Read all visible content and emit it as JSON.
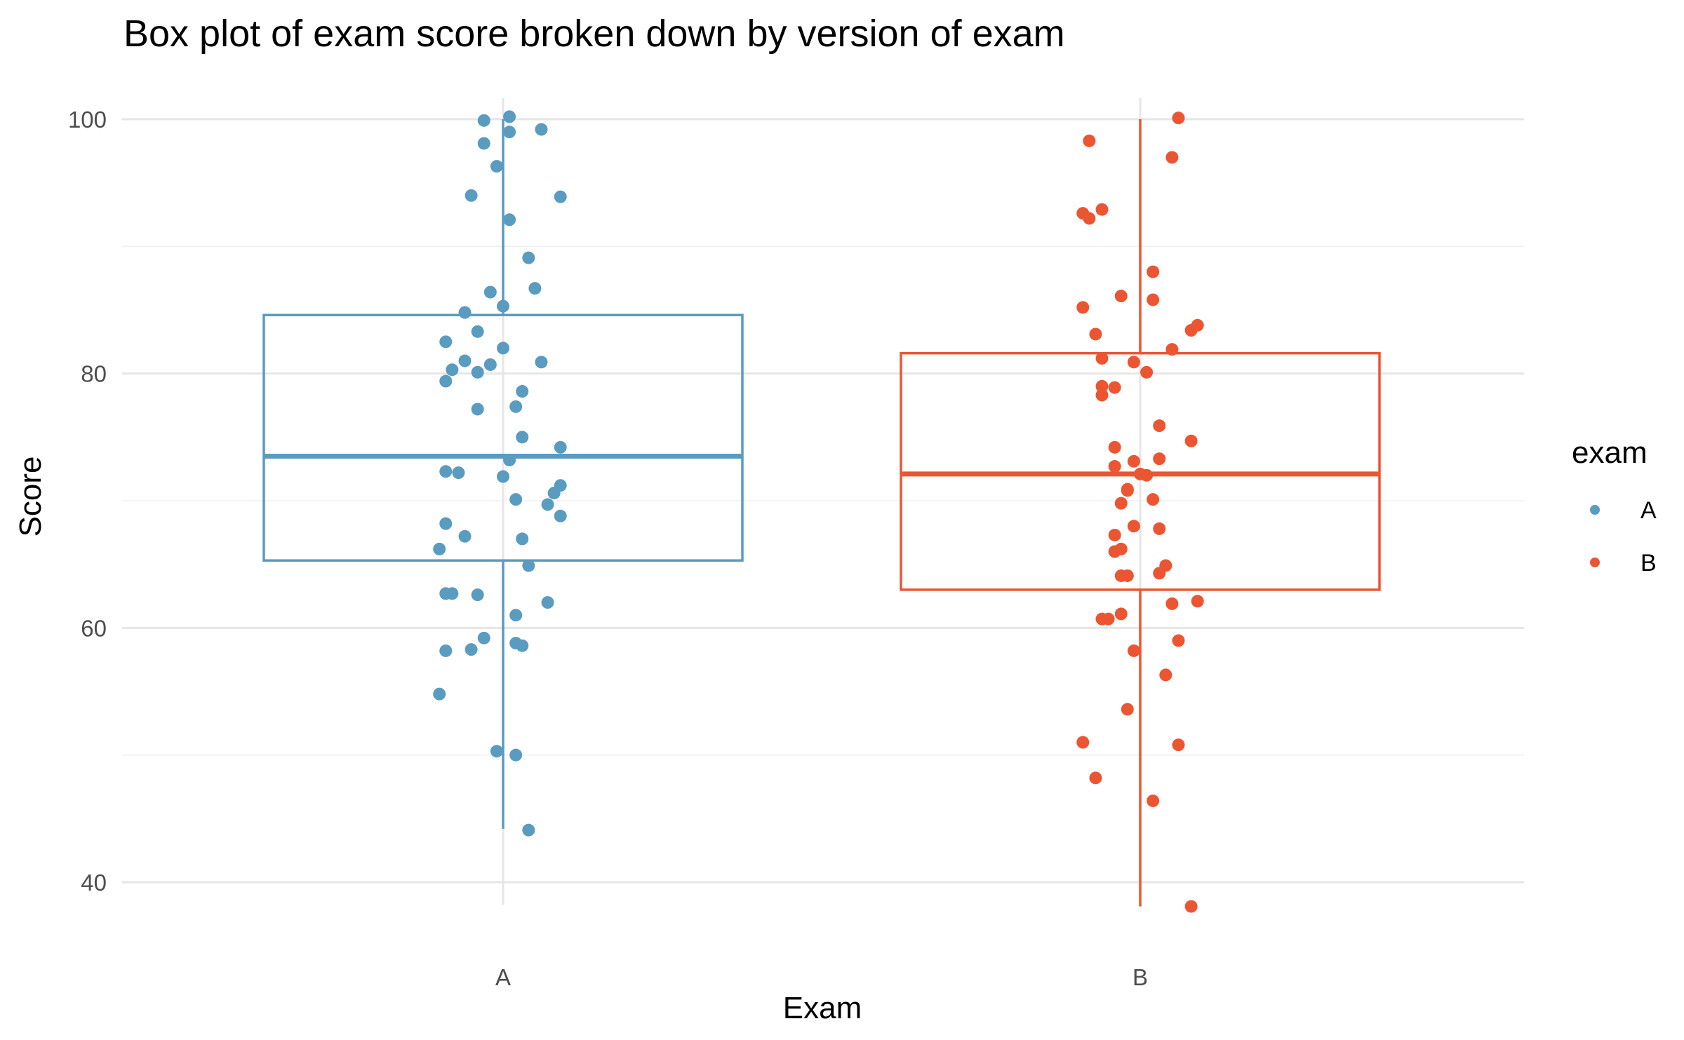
{
  "chart_data": {
    "type": "boxplot",
    "title": "Box plot of exam score broken down by version of exam",
    "xlabel": "Exam",
    "ylabel": "Score",
    "categories": [
      "A",
      "B"
    ],
    "ylim": [
      35,
      102
    ],
    "yticks": [
      40,
      60,
      80,
      100
    ],
    "grid": true,
    "legend": {
      "title": "exam",
      "position": "right",
      "entries": [
        "A",
        "B"
      ]
    },
    "colors": {
      "A": "#5a9bc0",
      "B": "#ec5532"
    },
    "boxes": [
      {
        "category": "A",
        "min": 44.2,
        "q1": 65.3,
        "median": 73.5,
        "q3": 84.6,
        "max": 100
      },
      {
        "category": "B",
        "min": 38.1,
        "q1": 63.0,
        "median": 72.1,
        "q3": 81.6,
        "max": 100
      }
    ],
    "series": [
      {
        "name": "A",
        "points": [
          {
            "x": 0.97,
            "y": 99.9
          },
          {
            "x": 1.01,
            "y": 100.2
          },
          {
            "x": 1.06,
            "y": 99.2
          },
          {
            "x": 1.01,
            "y": 99.0
          },
          {
            "x": 0.97,
            "y": 98.1
          },
          {
            "x": 0.99,
            "y": 96.3
          },
          {
            "x": 0.95,
            "y": 94.0
          },
          {
            "x": 1.09,
            "y": 93.9
          },
          {
            "x": 1.01,
            "y": 92.1
          },
          {
            "x": 1.04,
            "y": 89.1
          },
          {
            "x": 1.05,
            "y": 86.7
          },
          {
            "x": 0.98,
            "y": 86.4
          },
          {
            "x": 1.0,
            "y": 85.3
          },
          {
            "x": 0.94,
            "y": 84.8
          },
          {
            "x": 0.96,
            "y": 83.3
          },
          {
            "x": 0.91,
            "y": 82.5
          },
          {
            "x": 1.0,
            "y": 82.0
          },
          {
            "x": 0.94,
            "y": 81.0
          },
          {
            "x": 1.06,
            "y": 80.9
          },
          {
            "x": 0.98,
            "y": 80.7
          },
          {
            "x": 0.92,
            "y": 80.3
          },
          {
            "x": 0.96,
            "y": 80.1
          },
          {
            "x": 0.91,
            "y": 79.4
          },
          {
            "x": 1.03,
            "y": 78.6
          },
          {
            "x": 1.02,
            "y": 77.4
          },
          {
            "x": 0.96,
            "y": 77.2
          },
          {
            "x": 1.03,
            "y": 75.0
          },
          {
            "x": 1.09,
            "y": 74.2
          },
          {
            "x": 1.01,
            "y": 73.2
          },
          {
            "x": 0.91,
            "y": 72.3
          },
          {
            "x": 0.93,
            "y": 72.2
          },
          {
            "x": 1.0,
            "y": 71.9
          },
          {
            "x": 1.09,
            "y": 71.2
          },
          {
            "x": 1.08,
            "y": 70.6
          },
          {
            "x": 1.02,
            "y": 70.1
          },
          {
            "x": 1.07,
            "y": 69.7
          },
          {
            "x": 1.09,
            "y": 68.8
          },
          {
            "x": 0.91,
            "y": 68.2
          },
          {
            "x": 0.94,
            "y": 67.2
          },
          {
            "x": 1.03,
            "y": 67.0
          },
          {
            "x": 0.9,
            "y": 66.2
          },
          {
            "x": 1.04,
            "y": 64.9
          },
          {
            "x": 0.91,
            "y": 62.7
          },
          {
            "x": 0.92,
            "y": 62.7
          },
          {
            "x": 0.96,
            "y": 62.6
          },
          {
            "x": 1.07,
            "y": 62.0
          },
          {
            "x": 1.02,
            "y": 61.0
          },
          {
            "x": 0.97,
            "y": 59.2
          },
          {
            "x": 1.02,
            "y": 58.8
          },
          {
            "x": 1.03,
            "y": 58.6
          },
          {
            "x": 0.95,
            "y": 58.3
          },
          {
            "x": 0.91,
            "y": 58.2
          },
          {
            "x": 0.9,
            "y": 54.8
          },
          {
            "x": 0.99,
            "y": 50.3
          },
          {
            "x": 1.02,
            "y": 50.0
          },
          {
            "x": 1.04,
            "y": 44.1
          }
        ]
      },
      {
        "name": "B",
        "points": [
          {
            "x": 2.06,
            "y": 100.1
          },
          {
            "x": 1.92,
            "y": 98.3
          },
          {
            "x": 2.05,
            "y": 97.0
          },
          {
            "x": 1.94,
            "y": 92.9
          },
          {
            "x": 1.91,
            "y": 92.6
          },
          {
            "x": 1.92,
            "y": 92.2
          },
          {
            "x": 2.02,
            "y": 88.0
          },
          {
            "x": 1.97,
            "y": 86.1
          },
          {
            "x": 2.02,
            "y": 85.8
          },
          {
            "x": 1.91,
            "y": 85.2
          },
          {
            "x": 2.09,
            "y": 83.8
          },
          {
            "x": 2.08,
            "y": 83.4
          },
          {
            "x": 1.93,
            "y": 83.1
          },
          {
            "x": 2.05,
            "y": 81.9
          },
          {
            "x": 1.94,
            "y": 81.2
          },
          {
            "x": 1.99,
            "y": 80.9
          },
          {
            "x": 2.01,
            "y": 80.1
          },
          {
            "x": 1.94,
            "y": 79.0
          },
          {
            "x": 1.96,
            "y": 78.9
          },
          {
            "x": 1.94,
            "y": 78.3
          },
          {
            "x": 2.03,
            "y": 75.9
          },
          {
            "x": 2.08,
            "y": 74.7
          },
          {
            "x": 1.96,
            "y": 74.2
          },
          {
            "x": 2.03,
            "y": 73.3
          },
          {
            "x": 1.99,
            "y": 73.1
          },
          {
            "x": 1.96,
            "y": 72.7
          },
          {
            "x": 2.0,
            "y": 72.1
          },
          {
            "x": 2.01,
            "y": 72.0
          },
          {
            "x": 1.98,
            "y": 70.9
          },
          {
            "x": 1.98,
            "y": 70.8
          },
          {
            "x": 2.02,
            "y": 70.1
          },
          {
            "x": 1.97,
            "y": 69.8
          },
          {
            "x": 1.99,
            "y": 68.0
          },
          {
            "x": 2.03,
            "y": 67.8
          },
          {
            "x": 1.96,
            "y": 67.3
          },
          {
            "x": 1.97,
            "y": 66.2
          },
          {
            "x": 1.96,
            "y": 66.0
          },
          {
            "x": 2.04,
            "y": 64.9
          },
          {
            "x": 2.03,
            "y": 64.3
          },
          {
            "x": 1.97,
            "y": 64.1
          },
          {
            "x": 1.98,
            "y": 64.1
          },
          {
            "x": 2.09,
            "y": 62.1
          },
          {
            "x": 2.05,
            "y": 61.9
          },
          {
            "x": 1.97,
            "y": 61.1
          },
          {
            "x": 1.94,
            "y": 60.7
          },
          {
            "x": 1.95,
            "y": 60.7
          },
          {
            "x": 2.06,
            "y": 59.0
          },
          {
            "x": 1.99,
            "y": 58.2
          },
          {
            "x": 2.04,
            "y": 56.3
          },
          {
            "x": 1.98,
            "y": 53.6
          },
          {
            "x": 1.91,
            "y": 51.0
          },
          {
            "x": 2.06,
            "y": 50.8
          },
          {
            "x": 1.93,
            "y": 48.2
          },
          {
            "x": 2.02,
            "y": 46.4
          },
          {
            "x": 2.08,
            "y": 38.1
          }
        ]
      }
    ]
  }
}
